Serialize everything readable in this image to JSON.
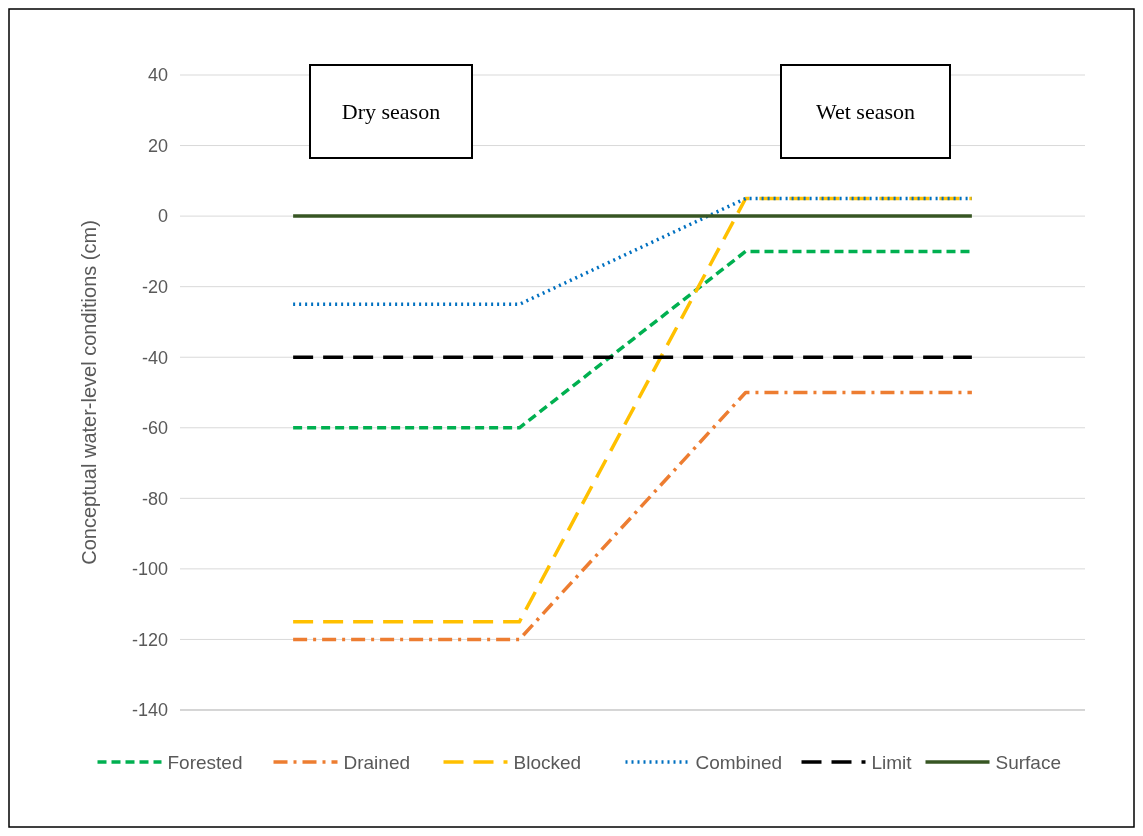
{
  "chart_data": {
    "type": "line",
    "ylabel": "Conceptual water-level conditions (cm)",
    "categories": [
      null,
      null,
      null,
      null
    ],
    "series": [
      {
        "name": "Forested",
        "color": "#00b050",
        "line_style": "dashed",
        "values": [
          -60,
          -60,
          -10,
          -10
        ]
      },
      {
        "name": "Drained",
        "color": "#ed7d31",
        "line_style": "dashdot",
        "values": [
          -120,
          -120,
          -50,
          -50
        ]
      },
      {
        "name": "Blocked",
        "color": "#ffc000",
        "line_style": "longdash",
        "values": [
          -115,
          -115,
          5,
          5
        ]
      },
      {
        "name": "Combined",
        "color": "#0070c0",
        "line_style": "dotted",
        "values": [
          -25,
          -25,
          5,
          5
        ]
      },
      {
        "name": "Limit",
        "color": "#000000",
        "line_style": "longdash",
        "values": [
          -40,
          -40,
          -40,
          -40
        ]
      },
      {
        "name": "Surface",
        "color": "#375623",
        "line_style": "solid",
        "values": [
          0,
          0,
          0,
          0
        ]
      }
    ],
    "ylim": [
      -140,
      40
    ],
    "yticks": [
      -140,
      -120,
      -100,
      -80,
      -60,
      -40,
      -20,
      0,
      20,
      40
    ],
    "grid": "y",
    "legend": "bottom",
    "marker": "none",
    "annotations": [
      "Dry season",
      "Wet season"
    ]
  }
}
